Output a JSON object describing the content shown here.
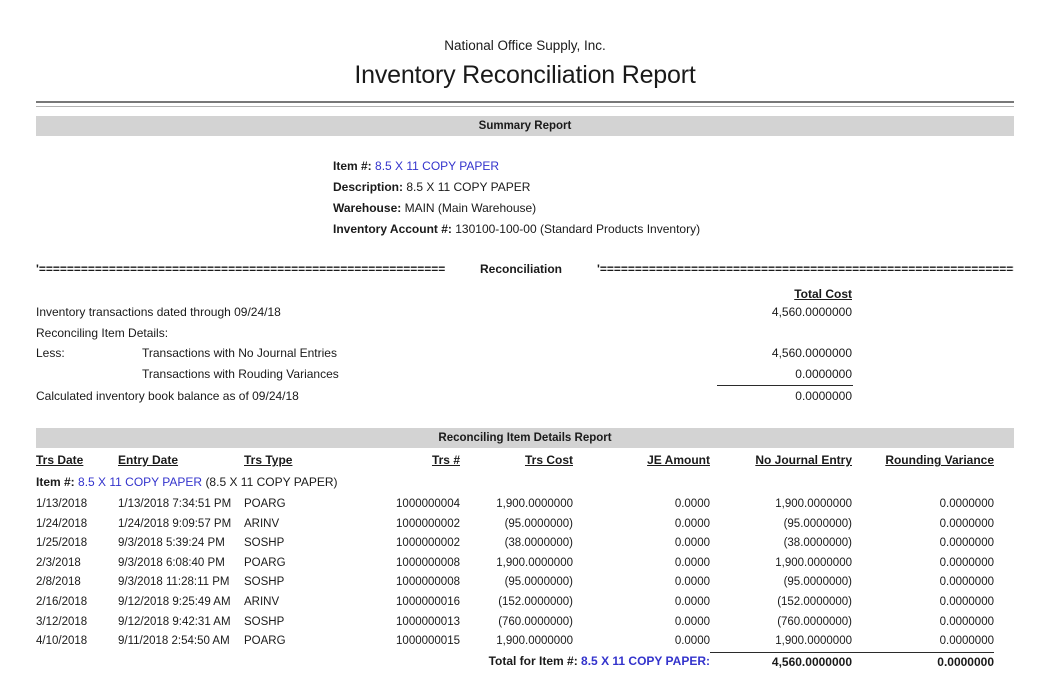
{
  "report": {
    "company": "National Office Supply, Inc.",
    "title": "Inventory Reconciliation Report"
  },
  "summary": {
    "bar_label": "Summary Report",
    "fields": [
      {
        "label": "Item #:",
        "value": "8.5 X 11 COPY PAPER"
      },
      {
        "label": "Description:",
        "value": "8.5 X 11 COPY PAPER"
      },
      {
        "label": "Warehouse:",
        "value": "MAIN (Main Warehouse)"
      },
      {
        "label": "Inventory Account #:",
        "value": "130100-100-00 (Standard Products Inventory)"
      }
    ]
  },
  "recon": {
    "left_rule": "'=========================================================================",
    "header": "Reconciliation",
    "right_rule": "'=========================================================================",
    "total_cost_header": "Total Cost",
    "rows": [
      {
        "prefix": "",
        "label": "Inventory transactions dated through 09/24/18",
        "value": "4,560.0000000"
      },
      {
        "prefix": "",
        "label": "Reconciling Item Details:",
        "value": ""
      },
      {
        "prefix": "Less:",
        "label": "Transactions with No Journal Entries",
        "value": "4,560.0000000"
      },
      {
        "prefix": "",
        "label": "Transactions with Rouding Variances",
        "value": "0.0000000"
      },
      {
        "prefix": "",
        "label": "Calculated inventory book balance as of 09/24/18",
        "value": "0.0000000"
      }
    ]
  },
  "details": {
    "bar_label": "Reconciling Item Details Report",
    "columns": [
      "Trs Date",
      "Entry Date",
      "Trs Type",
      "Trs #",
      "Trs Cost",
      "JE Amount",
      "No Journal Entry",
      "Rounding Variance"
    ],
    "item_line": {
      "label": "Item #:",
      "link": "8.5 X 11 COPY PAPER",
      "suffix": "(8.5 X 11 COPY PAPER)"
    },
    "rows": [
      [
        "1/13/2018",
        "1/13/2018 7:34:51 PM",
        "POARG",
        "1000000004",
        "1,900.0000000",
        "0.0000",
        "1,900.0000000",
        "0.0000000"
      ],
      [
        "1/24/2018",
        "1/24/2018 9:09:57 PM",
        "ARINV",
        "1000000002",
        "(95.0000000)",
        "0.0000",
        "(95.0000000)",
        "0.0000000"
      ],
      [
        "1/25/2018",
        "9/3/2018 5:39:24 PM",
        "SOSHP",
        "1000000002",
        "(38.0000000)",
        "0.0000",
        "(38.0000000)",
        "0.0000000"
      ],
      [
        "2/3/2018",
        "9/3/2018 6:08:40 PM",
        "POARG",
        "1000000008",
        "1,900.0000000",
        "0.0000",
        "1,900.0000000",
        "0.0000000"
      ],
      [
        "2/8/2018",
        "9/3/2018 11:28:11 PM",
        "SOSHP",
        "1000000008",
        "(95.0000000)",
        "0.0000",
        "(95.0000000)",
        "0.0000000"
      ],
      [
        "2/16/2018",
        "9/12/2018 9:25:49 AM",
        "ARINV",
        "1000000016",
        "(152.0000000)",
        "0.0000",
        "(152.0000000)",
        "0.0000000"
      ],
      [
        "3/12/2018",
        "9/12/2018 9:42:31 AM",
        "SOSHP",
        "1000000013",
        "(760.0000000)",
        "0.0000",
        "(760.0000000)",
        "0.0000000"
      ],
      [
        "4/10/2018",
        "9/11/2018 2:54:50 AM",
        "POARG",
        "1000000015",
        "1,900.0000000",
        "0.0000",
        "1,900.0000000",
        "0.0000000"
      ]
    ],
    "total": {
      "label": "Total for Item #:",
      "link": "8.5 X 11 COPY PAPER:",
      "no_journal_total": "4,560.0000000",
      "rounding_total": "0.0000000"
    }
  },
  "colors": {
    "link_blue": "#3333cc",
    "bar_gray": "#d3d3d3"
  }
}
